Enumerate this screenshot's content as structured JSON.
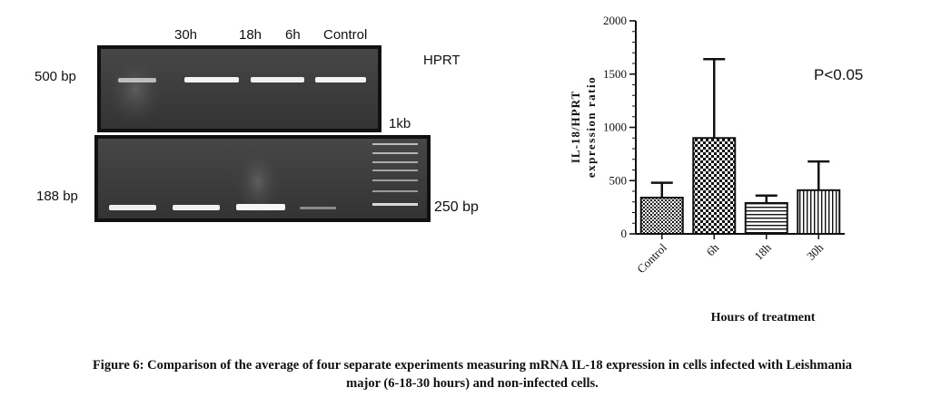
{
  "gel": {
    "lane_labels": [
      "30h",
      "18h",
      "6h",
      "Control"
    ],
    "gene_label": "HPRT",
    "top_size_label": "500 bp",
    "ladder_label": "1kb",
    "bottom_size_label": "188 bp",
    "ladder_band_label": "250 bp",
    "colors": {
      "gel_background": "#3d3d3d",
      "band": "#f4f4f4",
      "frame": "#111111"
    }
  },
  "chart_data": {
    "type": "bar",
    "categories": [
      "Control",
      "6h",
      "18h",
      "30h"
    ],
    "values": [
      340,
      900,
      290,
      410
    ],
    "error_upper": [
      480,
      1640,
      360,
      680
    ],
    "patterns": [
      "dots",
      "checker",
      "horizontal-lines",
      "vertical-lines"
    ],
    "title": "",
    "xlabel": "Hours of treatment",
    "ylabel_lines": [
      "IL-18/HPRT",
      "expression ratio"
    ],
    "ylim": [
      0,
      2000
    ],
    "yticks": [
      0,
      500,
      1000,
      1500,
      2000
    ],
    "minor_tick_step": 100,
    "annotation": "P<0.05",
    "grid": false,
    "legend": "none"
  },
  "caption": {
    "line1": "Figure 6: Comparison of the average of four separate experiments measuring mRNA IL-18 expression in cells infected with Leishmania",
    "line2": "major (6-18-30 hours) and non-infected cells."
  }
}
